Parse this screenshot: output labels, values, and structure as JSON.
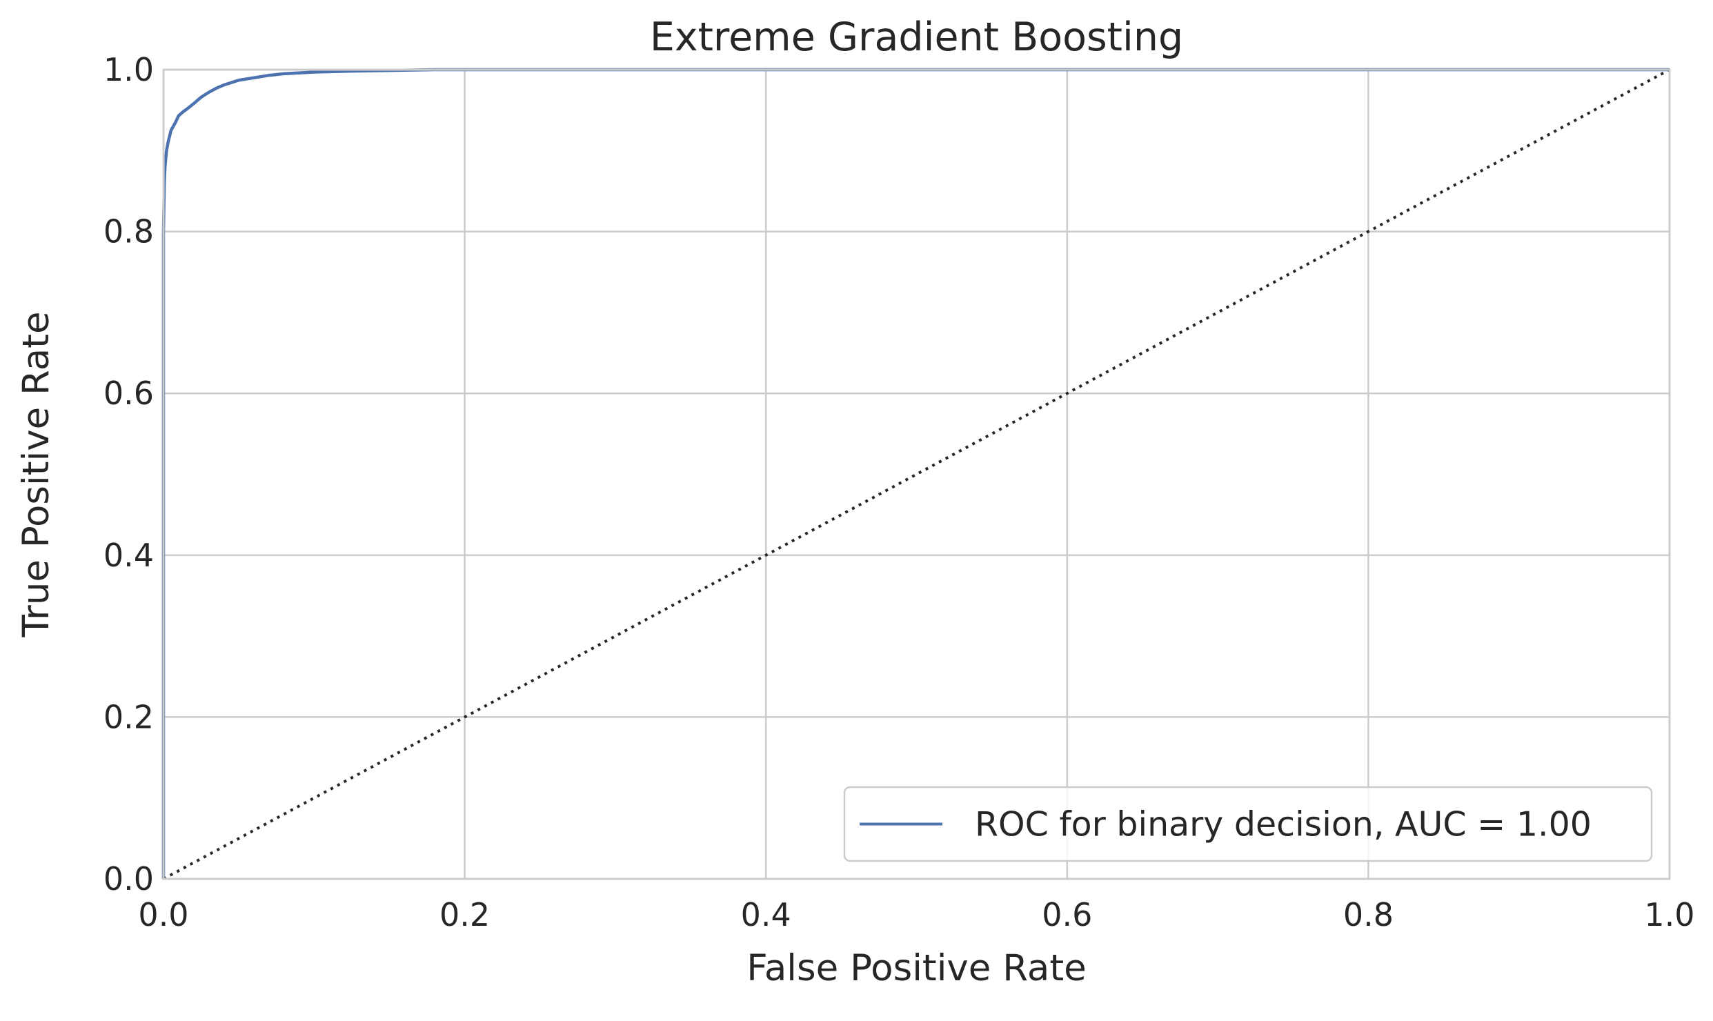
{
  "chart_data": {
    "type": "line",
    "title": "Extreme Gradient Boosting",
    "xlabel": "False Positive Rate",
    "ylabel": "True Positive Rate",
    "xlim": [
      0.0,
      1.0
    ],
    "ylim": [
      0.0,
      1.0
    ],
    "xticks": [
      "0.0",
      "0.2",
      "0.4",
      "0.6",
      "0.8",
      "1.0"
    ],
    "yticks": [
      "0.0",
      "0.2",
      "0.4",
      "0.6",
      "0.8",
      "1.0"
    ],
    "grid": true,
    "legend_position": "bottom-right",
    "series": [
      {
        "name": "ROC for binary decision, AUC = 1.00",
        "color": "#4c72b0",
        "style": "solid",
        "x": [
          0.0,
          0.0,
          0.0005,
          0.001,
          0.002,
          0.003,
          0.005,
          0.008,
          0.01,
          0.013,
          0.016,
          0.02,
          0.025,
          0.03,
          0.035,
          0.04,
          0.045,
          0.05,
          0.06,
          0.07,
          0.08,
          0.1,
          0.12,
          0.15,
          0.18,
          0.2,
          0.3,
          0.5,
          0.7,
          0.9,
          1.0
        ],
        "y": [
          0.0,
          0.8,
          0.86,
          0.88,
          0.9,
          0.91,
          0.925,
          0.935,
          0.943,
          0.948,
          0.952,
          0.958,
          0.966,
          0.972,
          0.977,
          0.981,
          0.984,
          0.987,
          0.99,
          0.993,
          0.995,
          0.997,
          0.998,
          0.999,
          1.0,
          1.0,
          1.0,
          1.0,
          1.0,
          1.0,
          1.0
        ]
      },
      {
        "name": "",
        "color": "#262626",
        "style": "dotted",
        "x": [
          0.0,
          1.0
        ],
        "y": [
          0.0,
          1.0
        ]
      }
    ]
  }
}
